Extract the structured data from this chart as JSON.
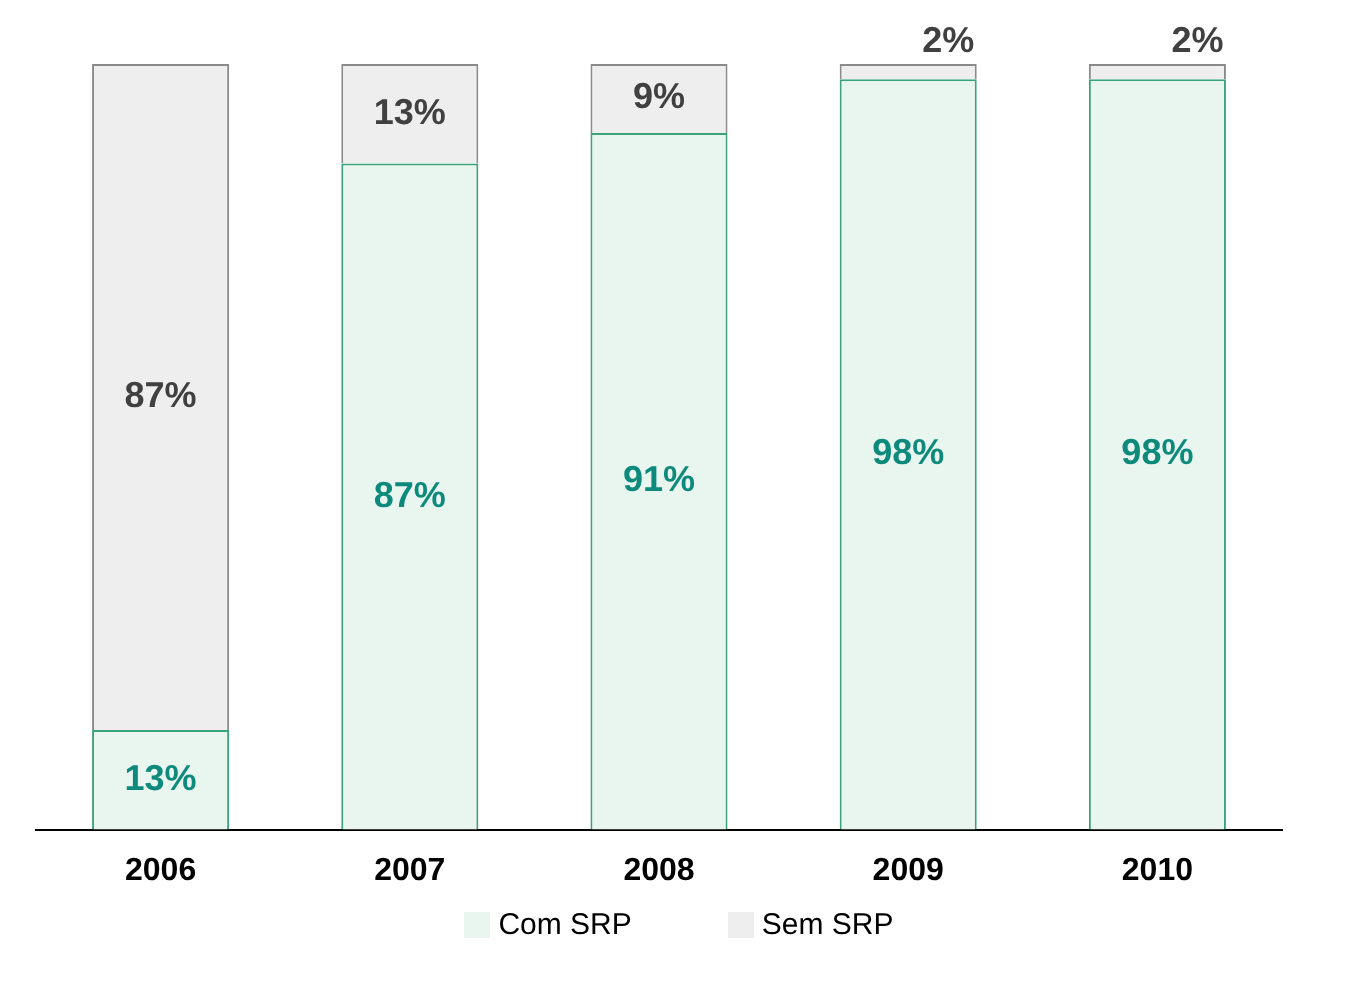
{
  "chart_data": {
    "type": "bar",
    "stacked": true,
    "categories": [
      "2006",
      "2007",
      "2008",
      "2009",
      "2010"
    ],
    "legend": "bottom",
    "grid": false,
    "series": [
      {
        "name": "Com SRP",
        "color": "#e8f6ef",
        "values": [
          13,
          87,
          91,
          98,
          98
        ],
        "value_labels": [
          "13%",
          "87%",
          "91%",
          "98%",
          "98%"
        ]
      },
      {
        "name": "Sem SRP",
        "color": "#eeeeee",
        "values": [
          87,
          13,
          9,
          2,
          2
        ],
        "value_labels": [
          "87%",
          "13%",
          "9%",
          "2%",
          "2%"
        ]
      }
    ]
  }
}
